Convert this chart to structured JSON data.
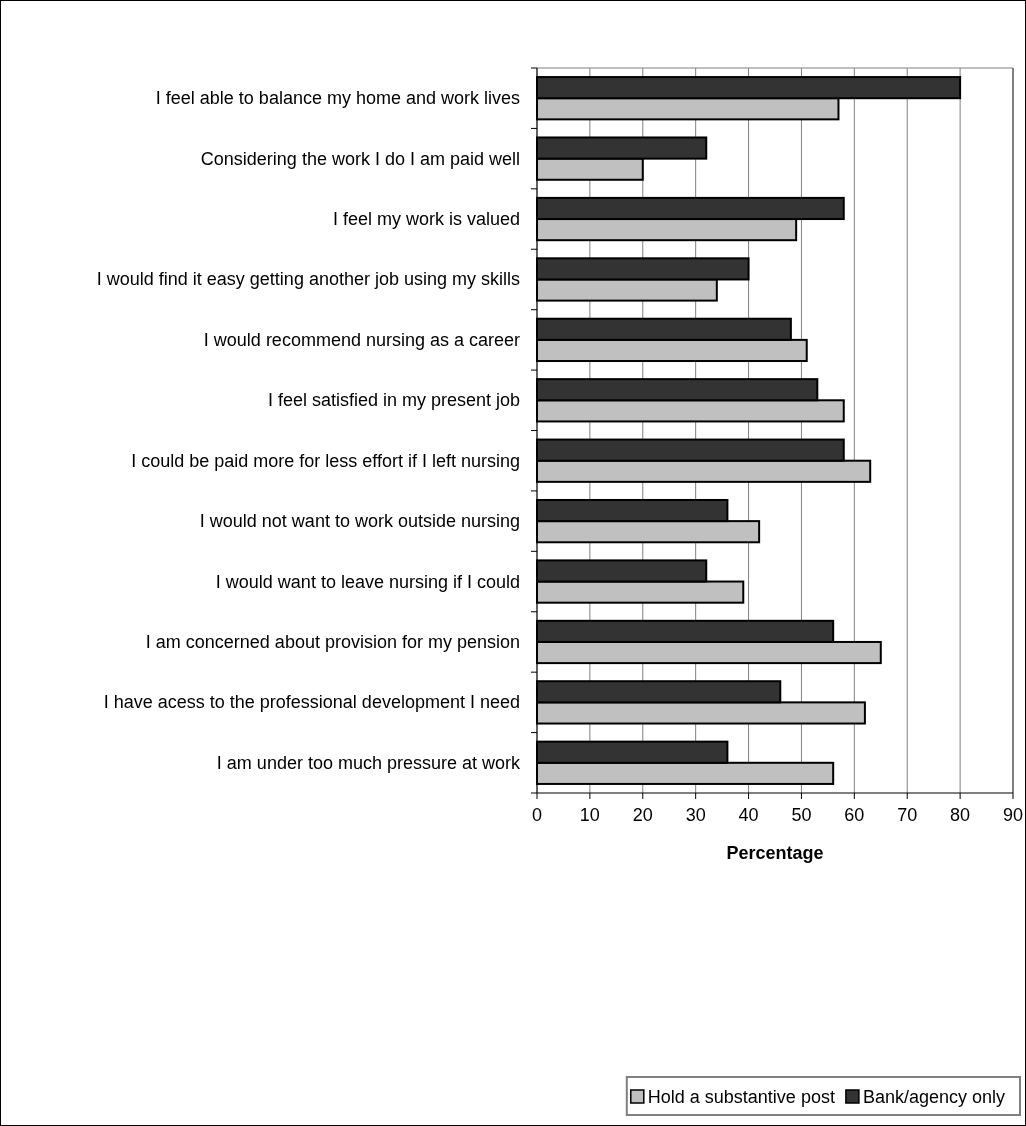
{
  "chart_data": {
    "type": "bar",
    "orientation": "horizontal",
    "xlabel": "Percentage",
    "categories": [
      "I feel able to balance my home and work lives",
      "Considering the work I do I am paid well",
      "I feel my work is valued",
      "I would find it easy getting another job using my skills",
      "I would recommend nursing as a career",
      "I feel satisfied in my present job",
      "I could be paid more for less effort if I left nursing",
      "I would not want to work outside nursing",
      "I would want to leave nursing if I could",
      "I am concerned about provision for my pension",
      "I have acess to the professional development I need",
      "I am under too much pressure at work"
    ],
    "series": [
      {
        "name": "Hold a substantive post",
        "color": "#c0c0c0",
        "values": [
          57,
          20,
          49,
          34,
          51,
          58,
          63,
          42,
          39,
          65,
          62,
          56
        ]
      },
      {
        "name": "Bank/agency only",
        "color": "#333333",
        "values": [
          80,
          32,
          58,
          40,
          48,
          53,
          58,
          36,
          32,
          56,
          46,
          36
        ]
      }
    ],
    "xlim": [
      0,
      90
    ],
    "xticks": [
      0,
      10,
      20,
      30,
      40,
      50,
      60,
      70,
      80,
      90
    ],
    "grid": "x",
    "legend": "bottom right"
  }
}
